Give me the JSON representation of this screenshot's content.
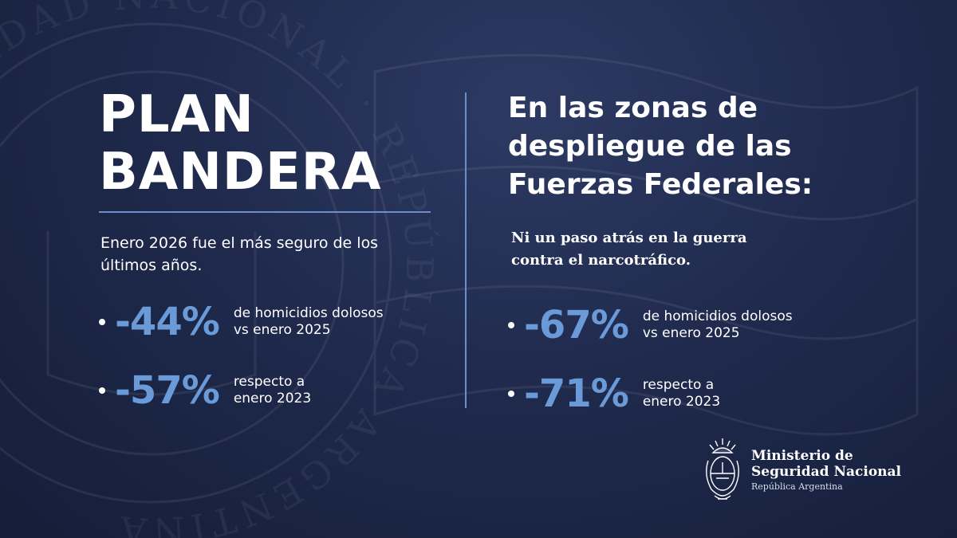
{
  "left": {
    "title_line1": "PLAN",
    "title_line2": "BANDERA",
    "intro": "Enero 2026 fue el más seguro de los últimos años.",
    "stats": [
      {
        "value": "-44%",
        "line1": "de homicidios dolosos",
        "line2": "vs enero 2025"
      },
      {
        "value": "-57%",
        "line1": "respecto a",
        "line2": "enero 2023"
      }
    ]
  },
  "right": {
    "headline_line1": "En las zonas de",
    "headline_line2": "despliegue de las",
    "headline_line3": "Fuerzas Federales:",
    "quote_line1": "Ni un paso atrás en la guerra",
    "quote_line2": "contra el narcotráfico.",
    "stats": [
      {
        "value": "-67%",
        "line1": "de homicidios dolosos",
        "line2": "vs enero 2025"
      },
      {
        "value": "-71%",
        "line1": "respecto a",
        "line2": "enero 2023"
      }
    ]
  },
  "footer": {
    "emblem_icon": "coat-of-arms-icon",
    "ministry_line1": "Ministerio de",
    "ministry_line2": "Seguridad Nacional",
    "country": "República Argentina"
  },
  "watermark": {
    "seal_text": "SEGURIDAD NACIONAL · REPÚBLICA ARGENTINA"
  },
  "colors": {
    "background": "#1f2a4d",
    "accent": "#6a9bd8",
    "rule": "#6d8fc9",
    "text": "#ffffff"
  }
}
